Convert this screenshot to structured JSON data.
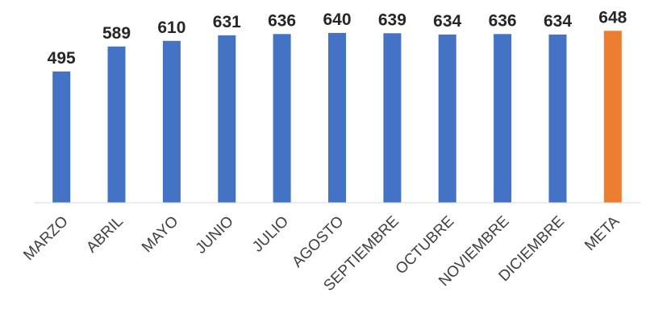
{
  "chart_data": {
    "type": "bar",
    "categories": [
      "MARZO",
      "ABRIL",
      "MAYO",
      "JUNIO",
      "JULIO",
      "AGOSTO",
      "SEPTIEMBRE",
      "OCTUBRE",
      "NOVIEMBRE",
      "DICIEMBRE",
      "META"
    ],
    "values": [
      495,
      589,
      610,
      631,
      636,
      640,
      639,
      634,
      636,
      634,
      648
    ],
    "title": "",
    "xlabel": "",
    "ylabel": "",
    "ylim": [
      0,
      655
    ],
    "grid": false,
    "legend": "none",
    "colors": {
      "bar": "#4472C4",
      "highlight": "#ED7D31",
      "axis": "#D9D9D9"
    },
    "highlight_category": "META"
  }
}
